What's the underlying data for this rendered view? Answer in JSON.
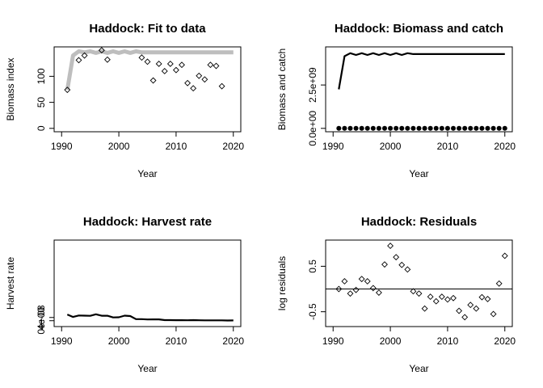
{
  "chart_data": [
    {
      "type": "scatter",
      "title": "Haddock: Fit to data",
      "xlabel": "Year",
      "ylabel": "Biomass index",
      "xlim": [
        1990,
        2020
      ],
      "ylim": [
        0,
        150
      ],
      "xticks": [
        "1990",
        "2000",
        "2010",
        "2020"
      ],
      "yticks": [
        "0",
        "50",
        "100"
      ],
      "grid": false,
      "series": [
        {
          "kind": "line",
          "color": "#bebebe",
          "x": [
            1991,
            1992,
            1993,
            1994,
            1995,
            1996,
            1997,
            1998,
            1999,
            2000,
            2001,
            2002,
            2003,
            2004,
            2005,
            2006,
            2007,
            2008,
            2009,
            2010,
            2011,
            2012,
            2013,
            2014,
            2015,
            2016,
            2017,
            2018,
            2019,
            2020
          ],
          "y": [
            74,
            140,
            148,
            146,
            148,
            145,
            148,
            145,
            148,
            145,
            148,
            145,
            148,
            146,
            146,
            146,
            146,
            146,
            146,
            146,
            146,
            146,
            146,
            146,
            146,
            146,
            146,
            146,
            146,
            146
          ]
        },
        {
          "kind": "points",
          "marker": "open-diamond",
          "x": [
            1991,
            1993,
            1994,
            1997,
            1998,
            2004,
            2005,
            2006,
            2007,
            2008,
            2009,
            2010,
            2011,
            2012,
            2013,
            2014,
            2015,
            2016,
            2017,
            2018
          ],
          "y": [
            74,
            131,
            140,
            150,
            132,
            136,
            128,
            92,
            124,
            110,
            124,
            112,
            122,
            87,
            77,
            101,
            94,
            122,
            120,
            81
          ]
        }
      ]
    },
    {
      "type": "line",
      "title": "Haddock: Biomass and catch",
      "xlabel": "Year",
      "ylabel": "Biomass and catch",
      "xlim": [
        1990,
        2020
      ],
      "ylim": [
        0,
        4500000000
      ],
      "xticks": [
        "1990",
        "2000",
        "2010",
        "2020"
      ],
      "yticks": [
        "0.0e+00",
        "2.5e+09"
      ],
      "yticks_values": [
        0,
        2500000000
      ],
      "grid": false,
      "series": [
        {
          "kind": "line",
          "color": "#000000",
          "x": [
            1991,
            1992,
            1993,
            1994,
            1995,
            1996,
            1997,
            1998,
            1999,
            2000,
            2001,
            2002,
            2003,
            2004,
            2005,
            2006,
            2007,
            2008,
            2009,
            2010,
            2011,
            2012,
            2013,
            2014,
            2015,
            2016,
            2017,
            2018,
            2019,
            2020
          ],
          "y": [
            2250000000,
            4160000000,
            4330000000,
            4230000000,
            4330000000,
            4230000000,
            4330000000,
            4230000000,
            4330000000,
            4230000000,
            4330000000,
            4230000000,
            4330000000,
            4280000000,
            4280000000,
            4280000000,
            4280000000,
            4280000000,
            4280000000,
            4280000000,
            4280000000,
            4280000000,
            4280000000,
            4280000000,
            4280000000,
            4280000000,
            4280000000,
            4280000000,
            4280000000,
            4280000000
          ]
        },
        {
          "kind": "points",
          "marker": "filled-circle",
          "x": [
            1991,
            1992,
            1993,
            1994,
            1995,
            1996,
            1997,
            1998,
            1999,
            2000,
            2001,
            2002,
            2003,
            2004,
            2005,
            2006,
            2007,
            2008,
            2009,
            2010,
            2011,
            2012,
            2013,
            2014,
            2015,
            2016,
            2017,
            2018,
            2019,
            2020
          ],
          "y": [
            0,
            0,
            0,
            0,
            0,
            0,
            0,
            0,
            0,
            0,
            0,
            0,
            0,
            0,
            0,
            0,
            0,
            0,
            0,
            0,
            0,
            0,
            0,
            0,
            0,
            0,
            0,
            0,
            0,
            0
          ]
        }
      ]
    },
    {
      "type": "line",
      "title": "Haddock: Harvest rate",
      "xlabel": "Year",
      "ylabel": "Harvest rate",
      "xlim": [
        1990,
        2020
      ],
      "ylim": [
        -3e-08,
        9.6e-07
      ],
      "xticks": [
        "1990",
        "2000",
        "2010",
        "2020"
      ],
      "yticks": [
        "0e+00",
        "4e-08"
      ],
      "yticks_values": [
        0,
        4e-08
      ],
      "grid": false,
      "series": [
        {
          "kind": "line",
          "color": "#000000",
          "x": [
            1991,
            1992,
            1993,
            1994,
            1995,
            1996,
            1997,
            1998,
            1999,
            2000,
            2001,
            2002,
            2003,
            2004,
            2005,
            2006,
            2007,
            2008,
            2009,
            2010,
            2011,
            2012,
            2013,
            2014,
            2015,
            2016,
            2017,
            2018,
            2019,
            2020
          ],
          "y": [
            7.7e-08,
            4.7e-08,
            6.5e-08,
            6.3e-08,
            6.1e-08,
            8e-08,
            6.2e-08,
            6.2e-08,
            4.1e-08,
            4.3e-08,
            6.3e-08,
            5.8e-08,
            1.9e-08,
            1.9e-08,
            1.5e-08,
            1.6e-08,
            1.6e-08,
            7e-09,
            7e-09,
            6e-09,
            6e-09,
            5e-09,
            7e-09,
            5e-09,
            4e-09,
            4e-09,
            4e-09,
            4e-09,
            2e-09,
            3e-09
          ]
        }
      ]
    },
    {
      "type": "scatter",
      "title": "Haddock: Residuals",
      "xlabel": "Year",
      "ylabel": "log residuals",
      "xlim": [
        1990,
        2020
      ],
      "ylim": [
        -0.75,
        1.0
      ],
      "xticks": [
        "1990",
        "2000",
        "2010",
        "2020"
      ],
      "yticks": [
        "-0.5",
        "0.5"
      ],
      "yticks_values": [
        -0.5,
        0.5
      ],
      "grid": false,
      "hline": 0,
      "series": [
        {
          "kind": "points",
          "marker": "open-diamond",
          "x": [
            1991,
            1992,
            1993,
            1994,
            1995,
            1996,
            1997,
            1998,
            1999,
            2000,
            2001,
            2002,
            2003,
            2004,
            2005,
            2006,
            2007,
            2008,
            2009,
            2010,
            2011,
            2012,
            2013,
            2014,
            2015,
            2016,
            2017,
            2018,
            2019,
            2020
          ],
          "y": [
            0.0,
            0.17,
            -0.1,
            -0.02,
            0.22,
            0.17,
            0.02,
            -0.08,
            0.54,
            0.95,
            0.7,
            0.53,
            0.43,
            -0.05,
            -0.1,
            -0.43,
            -0.17,
            -0.27,
            -0.17,
            -0.23,
            -0.2,
            -0.48,
            -0.62,
            -0.35,
            -0.43,
            -0.18,
            -0.22,
            -0.55,
            0.12,
            0.73
          ]
        }
      ]
    }
  ]
}
